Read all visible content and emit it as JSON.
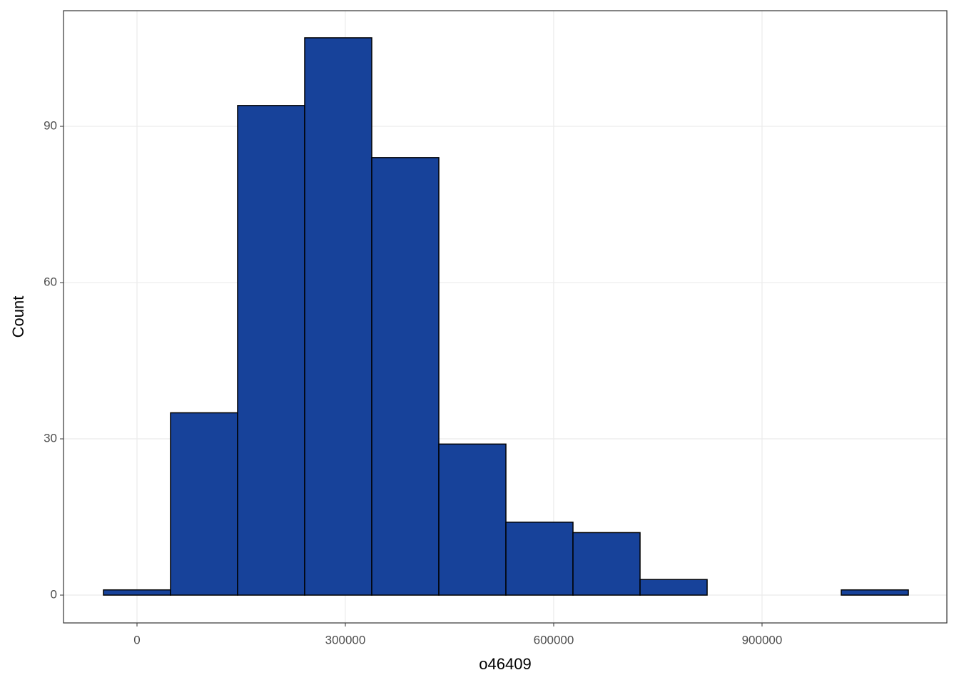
{
  "chart_data": {
    "type": "histogram",
    "x_label": "o46409",
    "y_label": "Count",
    "bins": [
      -48290,
      48290,
      144870,
      241450,
      338030,
      434610,
      531190,
      627770,
      724350,
      820930,
      917510,
      1014090,
      1110670
    ],
    "counts": [
      1,
      35,
      94,
      107,
      84,
      29,
      14,
      12,
      3,
      0,
      0,
      1
    ],
    "color": "#17429a",
    "edgecolor": "#000000",
    "xlim": [
      -105820,
      1166130
    ],
    "xticks": [
      0,
      300000,
      600000,
      900000
    ],
    "ylim": [
      -5.34,
      112.2
    ],
    "yticks": [
      0,
      30,
      60,
      90
    ],
    "grid": true
  }
}
